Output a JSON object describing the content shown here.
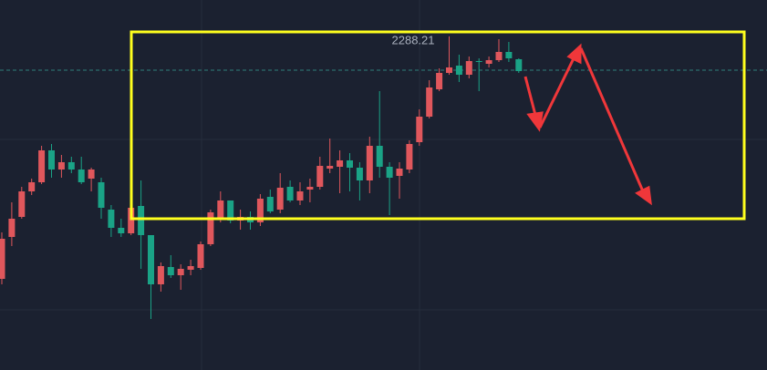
{
  "chart_data": {
    "type": "candlestick",
    "open": [
      2261.6,
      2266.2,
      2268.4,
      2271.2,
      2272.2,
      2275.7,
      2273.6,
      2274.4,
      2273.6,
      2272.6,
      2272.2,
      2269.2,
      2267.2,
      2266.6,
      2269.6,
      2266.4,
      2261.0,
      2262.9,
      2262.0,
      2262.6,
      2262.8,
      2265.4,
      2268.2,
      2270.2,
      2268.0,
      2268.4,
      2267.8,
      2270.6,
      2269.2,
      2271.7,
      2270.2,
      2271.4,
      2271.7,
      2273.7,
      2273.9,
      2274.6,
      2273.8,
      2272.4,
      2276.2,
      2273.9,
      2272.9,
      2273.6,
      2276.6,
      2279.4,
      2282.4,
      2284.2,
      2285.0,
      2284.0,
      2285.5,
      2285.2,
      2285.6,
      2286.5,
      2285.7
    ],
    "high": [
      2266.7,
      2270.0,
      2271.7,
      2272.6,
      2276.2,
      2276.4,
      2275.2,
      2275.0,
      2275.0,
      2273.8,
      2272.7,
      2269.7,
      2268.2,
      2270.2,
      2272.4,
      2266.4,
      2263.4,
      2264.2,
      2263.2,
      2263.7,
      2265.7,
      2269.2,
      2271.2,
      2270.2,
      2269.2,
      2269.0,
      2270.9,
      2271.4,
      2273.2,
      2272.4,
      2272.2,
      2272.6,
      2275.0,
      2277.0,
      2275.7,
      2275.4,
      2274.4,
      2277.2,
      2282.2,
      2274.4,
      2274.4,
      2276.8,
      2280.2,
      2283.4,
      2284.7,
      2288.21,
      2286.2,
      2286.0,
      2285.8,
      2286.0,
      2287.9,
      2287.6,
      2285.8
    ],
    "low": [
      2261.0,
      2265.2,
      2268.2,
      2270.8,
      2272.0,
      2272.7,
      2272.7,
      2273.2,
      2272.0,
      2271.2,
      2268.2,
      2266.2,
      2266.2,
      2266.4,
      2262.7,
      2257.2,
      2260.2,
      2261.7,
      2260.4,
      2262.0,
      2262.6,
      2265.2,
      2267.8,
      2267.7,
      2267.0,
      2267.0,
      2267.4,
      2268.8,
      2268.8,
      2270.0,
      2269.7,
      2270.0,
      2271.4,
      2273.2,
      2271.0,
      2271.2,
      2270.2,
      2271.0,
      2272.7,
      2268.6,
      2270.4,
      2273.2,
      2276.2,
      2279.2,
      2282.2,
      2284.0,
      2283.2,
      2283.6,
      2282.2,
      2284.8,
      2285.4,
      2285.4,
      2284.2
    ],
    "close": [
      2266.0,
      2268.2,
      2271.2,
      2272.2,
      2275.7,
      2273.6,
      2274.4,
      2273.6,
      2272.2,
      2273.6,
      2269.4,
      2267.2,
      2266.6,
      2269.4,
      2266.4,
      2261.0,
      2263.0,
      2262.0,
      2262.7,
      2263.0,
      2265.4,
      2268.9,
      2270.2,
      2268.0,
      2268.4,
      2267.8,
      2270.4,
      2269.0,
      2271.6,
      2270.2,
      2271.2,
      2271.7,
      2274.0,
      2274.0,
      2274.6,
      2273.8,
      2272.4,
      2276.2,
      2273.9,
      2272.7,
      2273.7,
      2276.4,
      2279.4,
      2282.6,
      2284.2,
      2284.8,
      2284.0,
      2285.5,
      2285.4,
      2285.6,
      2286.5,
      2285.8,
      2284.4
    ],
    "up_color": "#e0575c",
    "down_color": "#1aa386",
    "ylim": [
      2251.6,
      2292.2
    ],
    "price_line": 2284.5,
    "high_label": "2288.21"
  }
}
